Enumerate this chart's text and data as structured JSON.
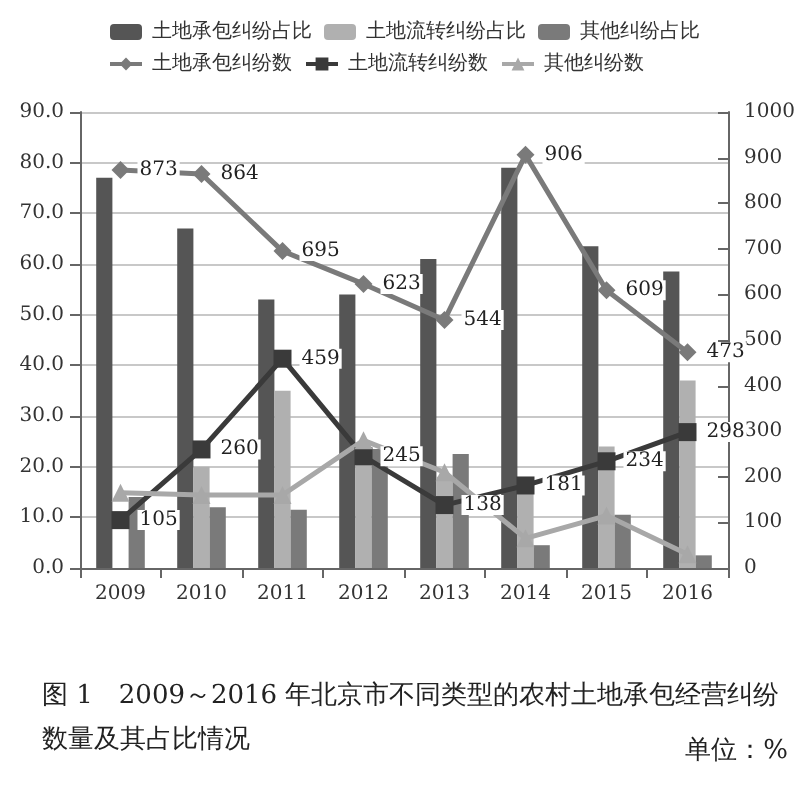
{
  "chart_data": {
    "type": "bar",
    "title": "图 1　2009～2016 年北京市不同类型的农村土地承包经营纠纷数量及其占比情况",
    "annotations": [
      "单位：%"
    ],
    "categories": [
      "2009",
      "2010",
      "2011",
      "2012",
      "2013",
      "2014",
      "2015",
      "2016"
    ],
    "series": [
      {
        "name": "土地承包纠纷占比",
        "color": "#555555",
        "values": [
          77,
          67,
          53,
          54,
          61,
          79,
          63.5,
          58.5
        ]
      },
      {
        "name": "土地流转纠纷占比",
        "color": "#b0b0b0",
        "values": [
          null,
          20,
          35,
          21,
          18,
          15,
          24,
          37
        ]
      },
      {
        "name": "其他纠纷占比",
        "color": "#7a7a7a",
        "values": [
          14,
          12,
          11.5,
          23.5,
          22.5,
          4.5,
          10.5,
          2.5
        ]
      },
      {
        "name": "土地承包纠纷数",
        "type": "line",
        "axis": "y2",
        "marker": "diamond",
        "color": "#7a7a7a",
        "values": [
          873,
          864,
          695,
          623,
          544,
          906,
          609,
          473
        ],
        "value_labels": [
          "873",
          "864",
          "695",
          "623",
          "544",
          "906",
          "609",
          "473"
        ]
      },
      {
        "name": "土地流转纠纷数",
        "type": "line",
        "axis": "y2",
        "marker": "square",
        "color": "#3a3a3a",
        "values": [
          105,
          260,
          459,
          245,
          138,
          181,
          234,
          298
        ],
        "value_labels": [
          "105",
          "260",
          "459",
          "245",
          "138",
          "181",
          "234",
          "298"
        ]
      },
      {
        "name": "其他纠纷数",
        "type": "line",
        "axis": "y2",
        "marker": "triangle",
        "color": "#a8a8a8",
        "values": [
          165,
          160,
          160,
          280,
          210,
          65,
          115,
          30
        ]
      }
    ],
    "ylim": [
      0,
      90
    ],
    "yticks": [
      {
        "value": 0,
        "label": "0.0"
      },
      {
        "value": 10,
        "label": "10.0"
      },
      {
        "value": 20,
        "label": "20.0"
      },
      {
        "value": 30,
        "label": "30.0"
      },
      {
        "value": 40,
        "label": "40.0"
      },
      {
        "value": 50,
        "label": "50.0"
      },
      {
        "value": 60,
        "label": "60.0"
      },
      {
        "value": 70,
        "label": "70.0"
      },
      {
        "value": 80,
        "label": "80.0"
      },
      {
        "value": 90,
        "label": "90.0"
      }
    ],
    "y2lim": [
      0,
      1000
    ],
    "y2ticks": [
      0,
      100,
      200,
      300,
      400,
      500,
      600,
      700,
      800,
      900,
      1000
    ],
    "grid": "y",
    "legend": "top"
  }
}
